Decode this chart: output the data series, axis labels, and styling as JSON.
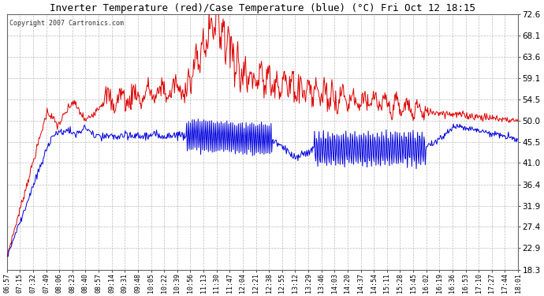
{
  "title": "Inverter Temperature (red)/Case Temperature (blue) (°C) Fri Oct 12 18:15",
  "copyright": "Copyright 2007 Cartronics.com",
  "ylim": [
    18.3,
    72.6
  ],
  "yticks": [
    18.3,
    22.9,
    27.4,
    31.9,
    36.4,
    41.0,
    45.5,
    50.0,
    54.5,
    59.1,
    63.6,
    68.1,
    72.6
  ],
  "bg_color": "#ffffff",
  "plot_bg_color": "#ffffff",
  "grid_color": "#bbbbbb",
  "red_color": "#dd0000",
  "blue_color": "#0000dd",
  "x_labels": [
    "06:57",
    "07:15",
    "07:32",
    "07:49",
    "08:06",
    "08:23",
    "08:40",
    "08:57",
    "09:14",
    "09:31",
    "09:48",
    "10:05",
    "10:22",
    "10:39",
    "10:56",
    "11:13",
    "11:30",
    "11:47",
    "12:04",
    "12:21",
    "12:38",
    "12:55",
    "13:12",
    "13:29",
    "13:46",
    "14:03",
    "14:20",
    "14:37",
    "14:54",
    "15:11",
    "15:28",
    "15:45",
    "16:02",
    "16:19",
    "16:36",
    "16:53",
    "17:10",
    "17:27",
    "17:44",
    "18:01"
  ],
  "figwidth": 6.9,
  "figheight": 3.75,
  "dpi": 100
}
